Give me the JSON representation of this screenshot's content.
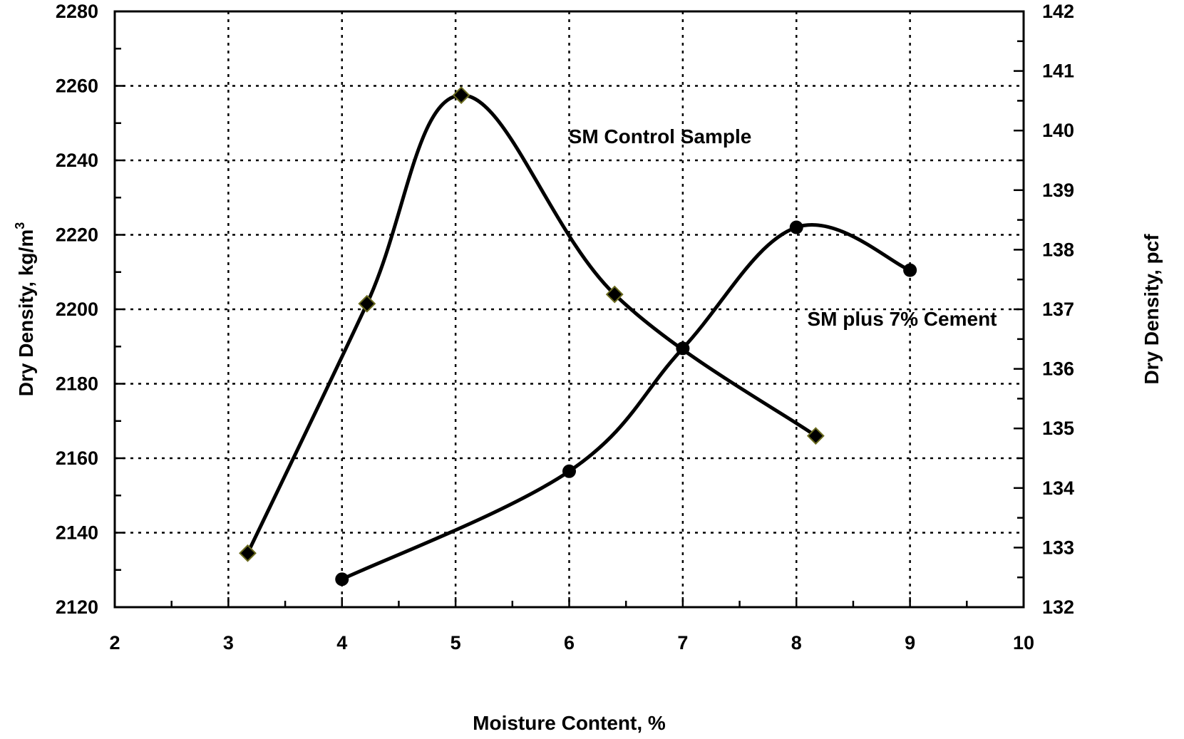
{
  "chart_data": {
    "type": "scatter",
    "xlabel": "Moisture Content, %",
    "ylabel": "Dry Density, kg/m",
    "ylabel_superscript": "3",
    "y2label": "Dry Density, pcf",
    "xlim": [
      2,
      10
    ],
    "ylim": [
      2120,
      2280
    ],
    "y2lim": [
      132,
      142
    ],
    "x_ticks": [
      "2",
      "3",
      "4",
      "5",
      "6",
      "7",
      "8",
      "9",
      "10"
    ],
    "y_ticks": [
      "2120",
      "2140",
      "2160",
      "2180",
      "2200",
      "2220",
      "2240",
      "2260",
      "2280"
    ],
    "y2_ticks": [
      "132",
      "133",
      "134",
      "135",
      "136",
      "137",
      "138",
      "139",
      "140",
      "141",
      "142"
    ],
    "grid": true,
    "series": [
      {
        "name": "SM Control Sample",
        "marker": "diamond",
        "line": "smooth",
        "x": [
          3.17,
          4.22,
          5.05,
          6.4,
          8.17
        ],
        "y": [
          2134.5,
          2201.5,
          2257.5,
          2204,
          2166
        ]
      },
      {
        "name": "SM plus 7% Cement",
        "marker": "circle",
        "line": "smooth",
        "x": [
          4.0,
          6.0,
          7.0,
          8.0,
          9.0
        ],
        "y": [
          2127.5,
          2156.5,
          2189.5,
          2222,
          2210.5
        ]
      }
    ],
    "annotations": [
      {
        "text": "SM Control Sample",
        "x": 6.8,
        "y": 2246.5
      },
      {
        "text": "SM plus 7% Cement",
        "x": 8.93,
        "y": 2197.5
      }
    ],
    "colors": {
      "line": "#000000",
      "diamond_fill": "#000000",
      "diamond_stroke": "#6b6b1f",
      "circle_fill": "#000000"
    }
  }
}
